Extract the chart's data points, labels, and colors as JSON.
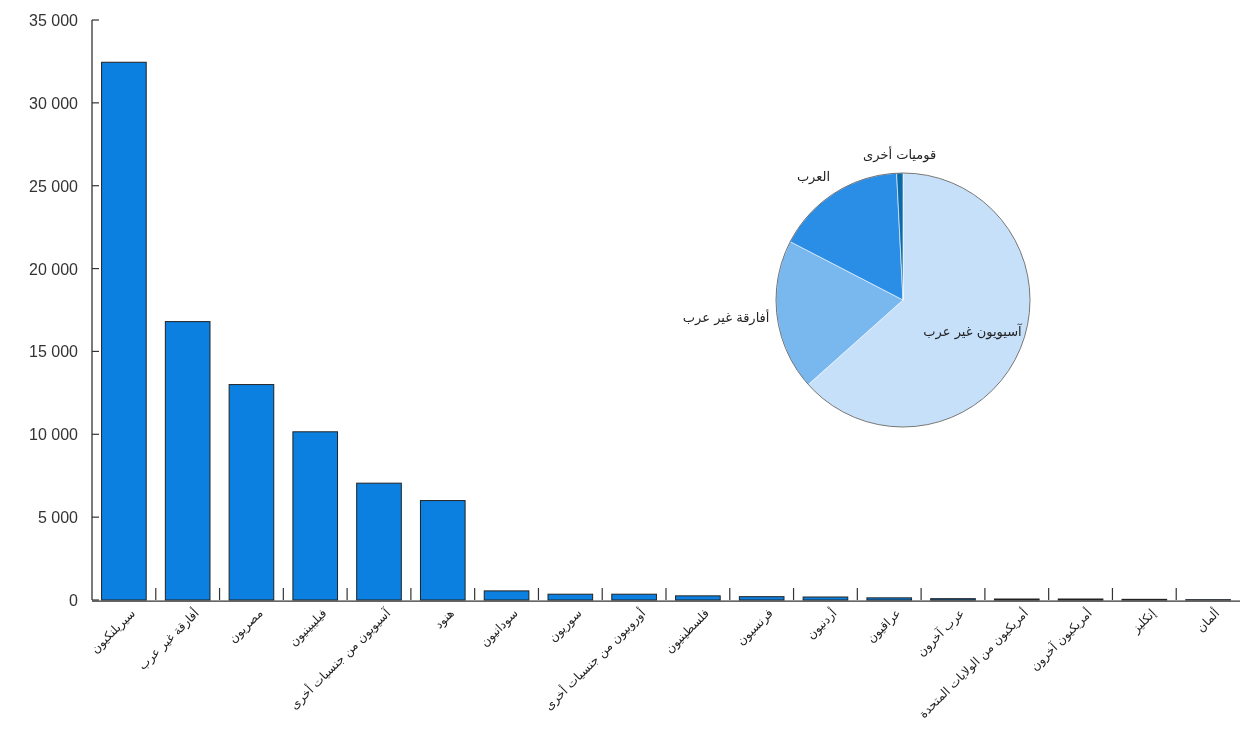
{
  "chart_data": [
    {
      "type": "bar",
      "categories": [
        "سيريلنكيون",
        "أفارقة غير عرب",
        "مصريون",
        "فيليبينيون",
        "آسيويون من جنسيات أخرى",
        "هنود",
        "سودانيون",
        "سوريون",
        "أوروبيون من جنسيات أخرى",
        "فلسطينيون",
        "فرنسيون",
        "أردنيون",
        "عراقيون",
        "عرب آخرون",
        "أمريكيون من الولايات المتحدة",
        "أمريكيون آخرون",
        "إنكليز",
        "ألمان"
      ],
      "values": [
        32450,
        16800,
        13000,
        10150,
        7050,
        6000,
        550,
        350,
        350,
        250,
        200,
        180,
        130,
        80,
        60,
        60,
        40,
        20
      ],
      "color": "#0b80e0",
      "ylim": [
        0,
        35000
      ],
      "yticks": [
        0,
        {
          "value": 5000,
          "label": "5 000"
        },
        {
          "value": 10000,
          "label": "10 000"
        },
        {
          "value": 15000,
          "label": "15 000"
        },
        {
          "value": 20000,
          "label": "20 000"
        },
        {
          "value": 25000,
          "label": "25 000"
        },
        {
          "value": 30000,
          "label": "30 000"
        },
        {
          "value": 35000,
          "label": "35 000"
        }
      ]
    },
    {
      "type": "pie",
      "categories": [
        "آسيويون غير عرب",
        "أفارقة غير عرب",
        "العرب",
        "قوميات أخرى"
      ],
      "values": [
        63.4,
        19.2,
        16.6,
        0.8
      ],
      "colors": [
        "#c5e0f8",
        "#79b7ef",
        "#2a8ee6",
        "#0a6aaa"
      ]
    }
  ]
}
